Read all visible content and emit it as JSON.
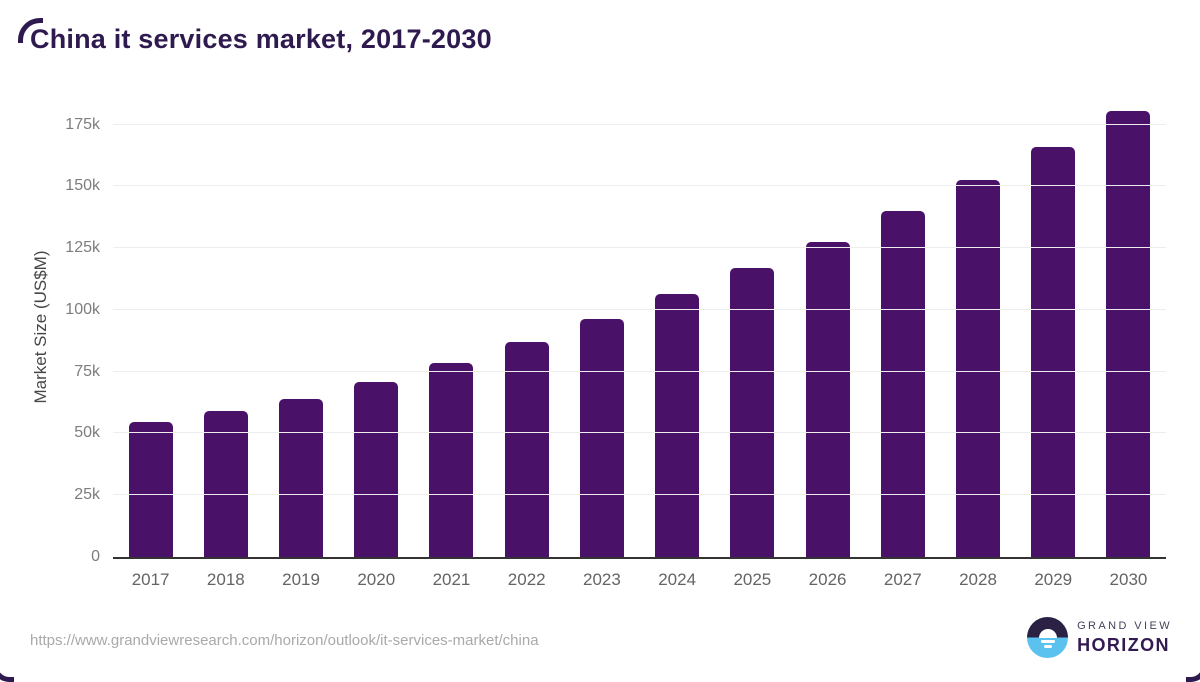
{
  "title": "China it services market, 2017-2030",
  "colors": {
    "bar": "#4a1168",
    "title_text": "#2e1a4e",
    "axis_line": "#333333",
    "gridline": "#ededed",
    "y_tick_text": "#7d7d7d",
    "x_tick_text": "#646464",
    "url_text": "#a9a9a9",
    "logo_dark": "#2b2144",
    "logo_blue": "#5bc1ef"
  },
  "chart_data": {
    "type": "bar",
    "title": "China it services market, 2017-2030",
    "categories": [
      "2017",
      "2018",
      "2019",
      "2020",
      "2021",
      "2022",
      "2023",
      "2024",
      "2025",
      "2026",
      "2027",
      "2028",
      "2029",
      "2030"
    ],
    "values": [
      54500,
      59000,
      64000,
      70700,
      78500,
      87000,
      96400,
      106300,
      117000,
      127600,
      140000,
      152500,
      166000,
      180400
    ],
    "xlabel": "",
    "ylabel": "Market Size (US$M)",
    "ylim": [
      0,
      187000
    ],
    "yticks": [
      {
        "value": 0,
        "label": "0"
      },
      {
        "value": 25000,
        "label": "25k"
      },
      {
        "value": 50000,
        "label": "50k"
      },
      {
        "value": 75000,
        "label": "75k"
      },
      {
        "value": 100000,
        "label": "100k"
      },
      {
        "value": 125000,
        "label": "125k"
      },
      {
        "value": 150000,
        "label": "150k"
      },
      {
        "value": 175000,
        "label": "175k"
      }
    ],
    "grid": "horizontal",
    "legend": "none",
    "bar_color": "#4a1168"
  },
  "footer": {
    "source_url": "https://www.grandviewresearch.com/horizon/outlook/it-services-market/china",
    "logo": {
      "line1": "GRAND VIEW",
      "line2": "HORIZON"
    }
  }
}
